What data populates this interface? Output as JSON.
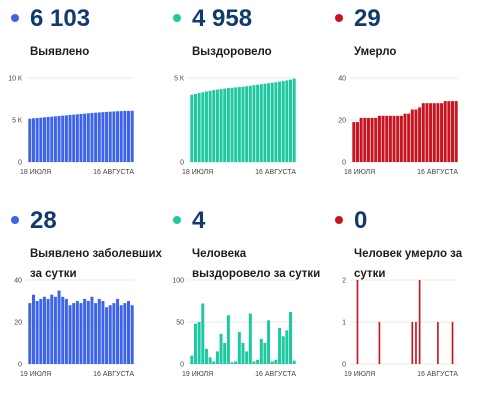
{
  "panels": [
    {
      "value": "6 103",
      "label": "Выявлено",
      "color": "#3d64e8",
      "chart_data": {
        "type": "bar",
        "title": "",
        "yticks": [
          {
            "v": 0,
            "label": "0"
          },
          {
            "v": 5000,
            "label": "5 К"
          },
          {
            "v": 10000,
            "label": "10 К"
          }
        ],
        "ylim": [
          0,
          10000
        ],
        "xlabels": [
          "18 ИЮЛЯ",
          "16 АВГУСТА"
        ],
        "values": [
          5150,
          5200,
          5240,
          5280,
          5320,
          5360,
          5400,
          5440,
          5480,
          5520,
          5560,
          5600,
          5640,
          5680,
          5720,
          5760,
          5800,
          5840,
          5870,
          5900,
          5930,
          5960,
          5990,
          6020,
          6040,
          6060,
          6080,
          6090,
          6103
        ]
      }
    },
    {
      "value": "4 958",
      "label": "Выздоровело",
      "color": "#1ec8a0",
      "chart_data": {
        "type": "bar",
        "title": "",
        "yticks": [
          {
            "v": 0,
            "label": "0"
          },
          {
            "v": 5000,
            "label": "5 К"
          }
        ],
        "ylim": [
          0,
          5000
        ],
        "xlabels": [
          "18 ИЮЛЯ",
          "16 АВГУСТА"
        ],
        "values": [
          4000,
          4050,
          4100,
          4150,
          4200,
          4240,
          4280,
          4310,
          4340,
          4370,
          4400,
          4420,
          4440,
          4460,
          4480,
          4510,
          4540,
          4570,
          4600,
          4630,
          4660,
          4690,
          4720,
          4750,
          4780,
          4820,
          4860,
          4900,
          4958
        ]
      }
    },
    {
      "value": "29",
      "label": "Умерло",
      "color": "#c8141e",
      "chart_data": {
        "type": "bar",
        "title": "",
        "yticks": [
          {
            "v": 0,
            "label": "0"
          },
          {
            "v": 20,
            "label": "20"
          },
          {
            "v": 40,
            "label": "40"
          }
        ],
        "ylim": [
          0,
          40
        ],
        "xlabels": [
          "18 ИЮЛЯ",
          "16 АВГУСТА"
        ],
        "values": [
          19,
          19,
          21,
          21,
          21,
          21,
          21,
          22,
          22,
          22,
          22,
          22,
          22,
          22,
          23,
          23,
          25,
          25,
          26,
          28,
          28,
          28,
          28,
          28,
          28,
          29,
          29,
          29,
          29
        ]
      }
    },
    {
      "value": "28",
      "label": "Выявлено заболевших за сутки",
      "color": "#3d64e8",
      "chart_data": {
        "type": "bar",
        "title": "",
        "yticks": [
          {
            "v": 0,
            "label": "0"
          },
          {
            "v": 20,
            "label": "20"
          },
          {
            "v": 40,
            "label": "40"
          }
        ],
        "ylim": [
          0,
          40
        ],
        "xlabels": [
          "19 ИЮЛЯ",
          "16 АВГУСТА"
        ],
        "values": [
          29,
          33,
          30,
          31,
          32,
          31,
          33,
          32,
          35,
          32,
          31,
          28,
          29,
          30,
          29,
          31,
          30,
          32,
          29,
          31,
          30,
          27,
          28,
          29,
          31,
          28,
          29,
          30,
          28
        ]
      }
    },
    {
      "value": "4",
      "label": "Человека выздоровело за сутки",
      "color": "#1ec8a0",
      "chart_data": {
        "type": "bar",
        "title": "",
        "yticks": [
          {
            "v": 0,
            "label": "0"
          },
          {
            "v": 50,
            "label": "50"
          },
          {
            "v": 100,
            "label": "100"
          }
        ],
        "ylim": [
          0,
          100
        ],
        "xlabels": [
          "19 ИЮЛЯ",
          "16 АВГУСТА"
        ],
        "values": [
          10,
          48,
          50,
          72,
          18,
          8,
          3,
          15,
          36,
          25,
          58,
          2,
          3,
          38,
          25,
          15,
          60,
          3,
          5,
          30,
          25,
          52,
          3,
          5,
          43,
          33,
          40,
          62,
          4
        ]
      }
    },
    {
      "value": "0",
      "label": "Человек умерло за сутки",
      "color": "#c8141e",
      "chart_data": {
        "type": "bar",
        "title": "",
        "yticks": [
          {
            "v": 0,
            "label": "0"
          },
          {
            "v": 1,
            "label": "1"
          },
          {
            "v": 2,
            "label": "2"
          }
        ],
        "ylim": [
          0,
          2
        ],
        "xlabels": [
          "19 ИЮЛЯ",
          "16 АВГУСТА"
        ],
        "values": [
          0,
          2,
          0,
          0,
          0,
          0,
          0,
          1,
          0,
          0,
          0,
          0,
          0,
          0,
          0,
          0,
          1,
          1,
          2,
          0,
          0,
          0,
          0,
          1,
          0,
          0,
          0,
          1,
          0
        ]
      }
    }
  ]
}
